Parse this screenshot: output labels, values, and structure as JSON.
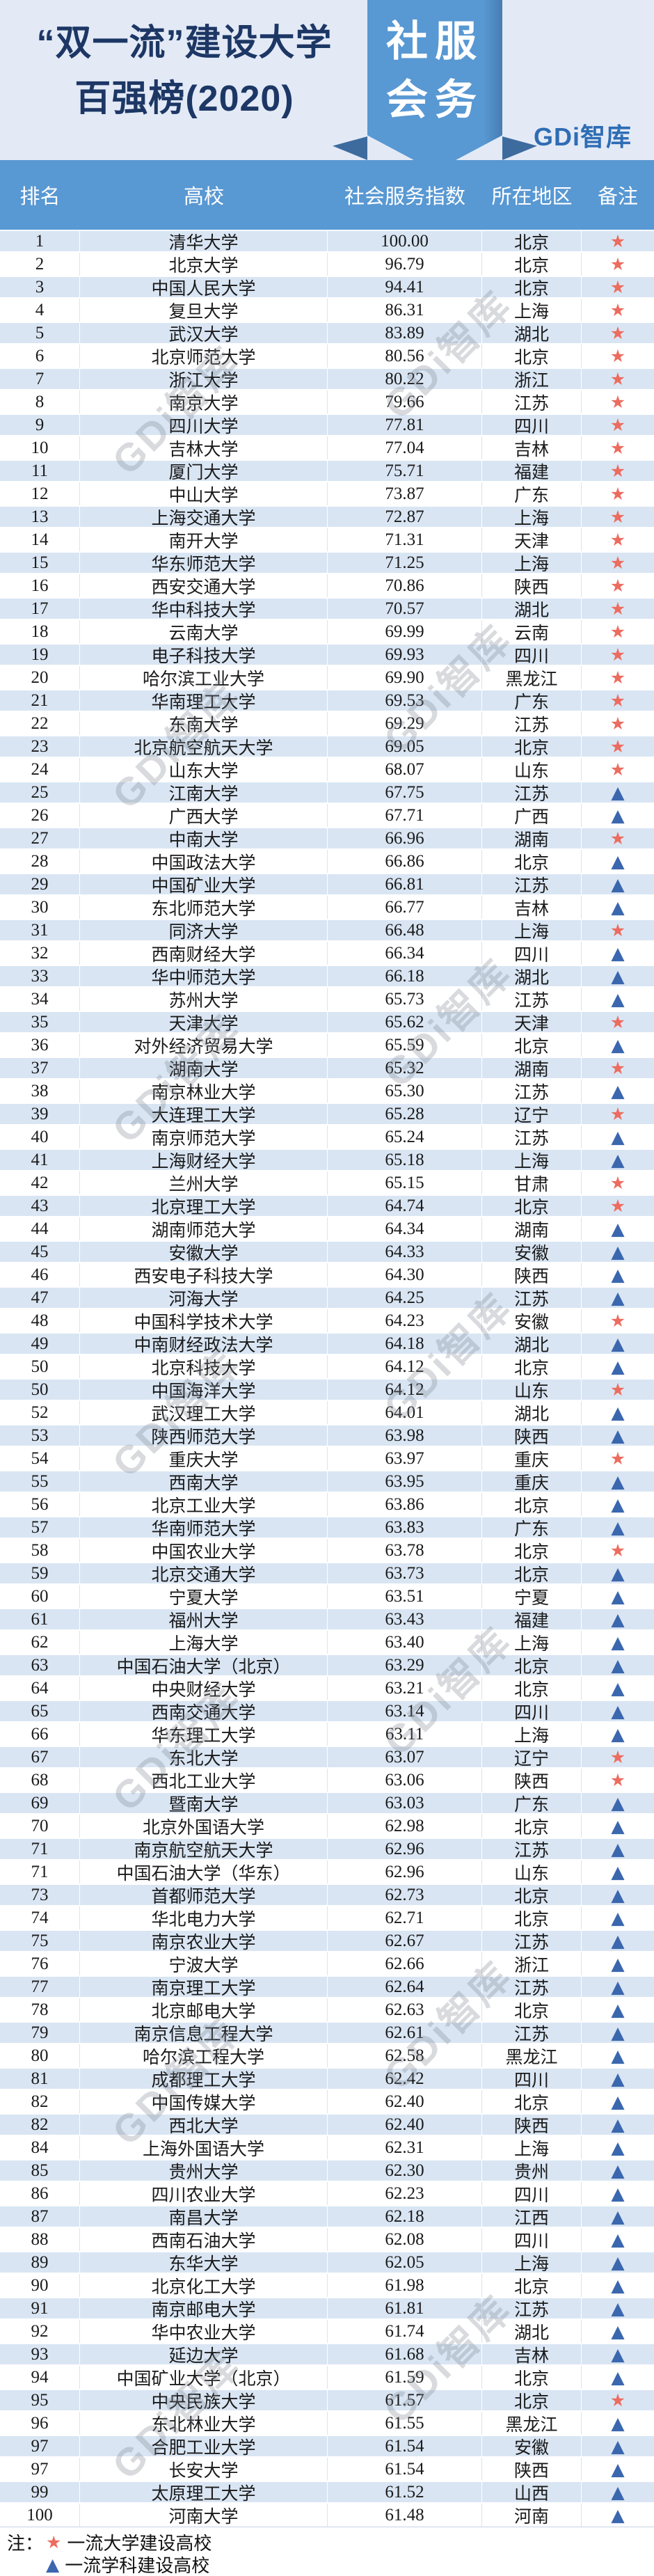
{
  "header": {
    "title_line1": "“双一流”建设大学",
    "title_line2": "百强榜(2020)",
    "badge_line1": "社服",
    "badge_line2": "会务",
    "logo": "GDi智库"
  },
  "colors": {
    "banner_background": "#e3eaf6",
    "header_blue": "#5898d3",
    "row_alt_blue": "#d9e5f3",
    "title_navy": "#1d3765",
    "star_red": "#ec6c5f",
    "triangle_blue": "#3a67ae",
    "logo_blue": "#2e6db4"
  },
  "watermark": {
    "text": "GDi智库"
  },
  "legend": {
    "prefix": "注：",
    "star_symbol": "★",
    "star_label": "一流大学建设高校",
    "triangle_symbol": "▲",
    "triangle_label": "一流学科建设高校"
  },
  "chart_data": {
    "type": "table",
    "title": "“双一流”建设大学百强榜(2020)",
    "subtitle_badge": "社服会务",
    "columns": [
      "排名",
      "高校",
      "社会服务指数",
      "所在地区",
      "备注"
    ],
    "note_symbols": {
      "star": "★",
      "triangle": "▲"
    },
    "rows": [
      [
        "1",
        "清华大学",
        "100.00",
        "北京",
        "star"
      ],
      [
        "2",
        "北京大学",
        "96.79",
        "北京",
        "star"
      ],
      [
        "3",
        "中国人民大学",
        "94.41",
        "北京",
        "star"
      ],
      [
        "4",
        "复旦大学",
        "86.31",
        "上海",
        "star"
      ],
      [
        "5",
        "武汉大学",
        "83.89",
        "湖北",
        "star"
      ],
      [
        "6",
        "北京师范大学",
        "80.56",
        "北京",
        "star"
      ],
      [
        "7",
        "浙江大学",
        "80.22",
        "浙江",
        "star"
      ],
      [
        "8",
        "南京大学",
        "79.66",
        "江苏",
        "star"
      ],
      [
        "9",
        "四川大学",
        "77.81",
        "四川",
        "star"
      ],
      [
        "10",
        "吉林大学",
        "77.04",
        "吉林",
        "star"
      ],
      [
        "11",
        "厦门大学",
        "75.71",
        "福建",
        "star"
      ],
      [
        "12",
        "中山大学",
        "73.87",
        "广东",
        "star"
      ],
      [
        "13",
        "上海交通大学",
        "72.87",
        "上海",
        "star"
      ],
      [
        "14",
        "南开大学",
        "71.31",
        "天津",
        "star"
      ],
      [
        "15",
        "华东师范大学",
        "71.25",
        "上海",
        "star"
      ],
      [
        "16",
        "西安交通大学",
        "70.86",
        "陕西",
        "star"
      ],
      [
        "17",
        "华中科技大学",
        "70.57",
        "湖北",
        "star"
      ],
      [
        "18",
        "云南大学",
        "69.99",
        "云南",
        "star"
      ],
      [
        "19",
        "电子科技大学",
        "69.93",
        "四川",
        "star"
      ],
      [
        "20",
        "哈尔滨工业大学",
        "69.90",
        "黑龙江",
        "star"
      ],
      [
        "21",
        "华南理工大学",
        "69.53",
        "广东",
        "star"
      ],
      [
        "22",
        "东南大学",
        "69.29",
        "江苏",
        "star"
      ],
      [
        "23",
        "北京航空航天大学",
        "69.05",
        "北京",
        "star"
      ],
      [
        "24",
        "山东大学",
        "68.07",
        "山东",
        "star"
      ],
      [
        "25",
        "江南大学",
        "67.75",
        "江苏",
        "triangle"
      ],
      [
        "26",
        "广西大学",
        "67.71",
        "广西",
        "triangle"
      ],
      [
        "27",
        "中南大学",
        "66.96",
        "湖南",
        "star"
      ],
      [
        "28",
        "中国政法大学",
        "66.86",
        "北京",
        "triangle"
      ],
      [
        "29",
        "中国矿业大学",
        "66.81",
        "江苏",
        "triangle"
      ],
      [
        "30",
        "东北师范大学",
        "66.77",
        "吉林",
        "triangle"
      ],
      [
        "31",
        "同济大学",
        "66.48",
        "上海",
        "star"
      ],
      [
        "32",
        "西南财经大学",
        "66.34",
        "四川",
        "triangle"
      ],
      [
        "33",
        "华中师范大学",
        "66.18",
        "湖北",
        "triangle"
      ],
      [
        "34",
        "苏州大学",
        "65.73",
        "江苏",
        "triangle"
      ],
      [
        "35",
        "天津大学",
        "65.62",
        "天津",
        "star"
      ],
      [
        "36",
        "对外经济贸易大学",
        "65.59",
        "北京",
        "triangle"
      ],
      [
        "37",
        "湖南大学",
        "65.32",
        "湖南",
        "star"
      ],
      [
        "38",
        "南京林业大学",
        "65.30",
        "江苏",
        "triangle"
      ],
      [
        "39",
        "大连理工大学",
        "65.28",
        "辽宁",
        "star"
      ],
      [
        "40",
        "南京师范大学",
        "65.24",
        "江苏",
        "triangle"
      ],
      [
        "41",
        "上海财经大学",
        "65.18",
        "上海",
        "triangle"
      ],
      [
        "42",
        "兰州大学",
        "65.15",
        "甘肃",
        "star"
      ],
      [
        "43",
        "北京理工大学",
        "64.74",
        "北京",
        "star"
      ],
      [
        "44",
        "湖南师范大学",
        "64.34",
        "湖南",
        "triangle"
      ],
      [
        "45",
        "安徽大学",
        "64.33",
        "安徽",
        "triangle"
      ],
      [
        "46",
        "西安电子科技大学",
        "64.30",
        "陕西",
        "triangle"
      ],
      [
        "47",
        "河海大学",
        "64.25",
        "江苏",
        "triangle"
      ],
      [
        "48",
        "中国科学技术大学",
        "64.23",
        "安徽",
        "star"
      ],
      [
        "49",
        "中南财经政法大学",
        "64.18",
        "湖北",
        "triangle"
      ],
      [
        "50",
        "北京科技大学",
        "64.12",
        "北京",
        "triangle"
      ],
      [
        "50",
        "中国海洋大学",
        "64.12",
        "山东",
        "star"
      ],
      [
        "52",
        "武汉理工大学",
        "64.01",
        "湖北",
        "triangle"
      ],
      [
        "53",
        "陕西师范大学",
        "63.98",
        "陕西",
        "triangle"
      ],
      [
        "54",
        "重庆大学",
        "63.97",
        "重庆",
        "star"
      ],
      [
        "55",
        "西南大学",
        "63.95",
        "重庆",
        "triangle"
      ],
      [
        "56",
        "北京工业大学",
        "63.86",
        "北京",
        "triangle"
      ],
      [
        "57",
        "华南师范大学",
        "63.83",
        "广东",
        "triangle"
      ],
      [
        "58",
        "中国农业大学",
        "63.78",
        "北京",
        "star"
      ],
      [
        "59",
        "北京交通大学",
        "63.73",
        "北京",
        "triangle"
      ],
      [
        "60",
        "宁夏大学",
        "63.51",
        "宁夏",
        "triangle"
      ],
      [
        "61",
        "福州大学",
        "63.43",
        "福建",
        "triangle"
      ],
      [
        "62",
        "上海大学",
        "63.40",
        "上海",
        "triangle"
      ],
      [
        "63",
        "中国石油大学（北京）",
        "63.29",
        "北京",
        "triangle"
      ],
      [
        "64",
        "中央财经大学",
        "63.21",
        "北京",
        "triangle"
      ],
      [
        "65",
        "西南交通大学",
        "63.14",
        "四川",
        "triangle"
      ],
      [
        "66",
        "华东理工大学",
        "63.11",
        "上海",
        "triangle"
      ],
      [
        "67",
        "东北大学",
        "63.07",
        "辽宁",
        "star"
      ],
      [
        "68",
        "西北工业大学",
        "63.06",
        "陕西",
        "star"
      ],
      [
        "69",
        "暨南大学",
        "63.03",
        "广东",
        "triangle"
      ],
      [
        "70",
        "北京外国语大学",
        "62.98",
        "北京",
        "triangle"
      ],
      [
        "71",
        "南京航空航天大学",
        "62.96",
        "江苏",
        "triangle"
      ],
      [
        "71",
        "中国石油大学（华东）",
        "62.96",
        "山东",
        "triangle"
      ],
      [
        "73",
        "首都师范大学",
        "62.73",
        "北京",
        "triangle"
      ],
      [
        "74",
        "华北电力大学",
        "62.71",
        "北京",
        "triangle"
      ],
      [
        "75",
        "南京农业大学",
        "62.67",
        "江苏",
        "triangle"
      ],
      [
        "76",
        "宁波大学",
        "62.66",
        "浙江",
        "triangle"
      ],
      [
        "77",
        "南京理工大学",
        "62.64",
        "江苏",
        "triangle"
      ],
      [
        "78",
        "北京邮电大学",
        "62.63",
        "北京",
        "triangle"
      ],
      [
        "79",
        "南京信息工程大学",
        "62.61",
        "江苏",
        "triangle"
      ],
      [
        "80",
        "哈尔滨工程大学",
        "62.58",
        "黑龙江",
        "triangle"
      ],
      [
        "81",
        "成都理工大学",
        "62.42",
        "四川",
        "triangle"
      ],
      [
        "82",
        "中国传媒大学",
        "62.40",
        "北京",
        "triangle"
      ],
      [
        "82",
        "西北大学",
        "62.40",
        "陕西",
        "triangle"
      ],
      [
        "84",
        "上海外国语大学",
        "62.31",
        "上海",
        "triangle"
      ],
      [
        "85",
        "贵州大学",
        "62.30",
        "贵州",
        "triangle"
      ],
      [
        "86",
        "四川农业大学",
        "62.23",
        "四川",
        "triangle"
      ],
      [
        "87",
        "南昌大学",
        "62.18",
        "江西",
        "triangle"
      ],
      [
        "88",
        "西南石油大学",
        "62.08",
        "四川",
        "triangle"
      ],
      [
        "89",
        "东华大学",
        "62.05",
        "上海",
        "triangle"
      ],
      [
        "90",
        "北京化工大学",
        "61.98",
        "北京",
        "triangle"
      ],
      [
        "91",
        "南京邮电大学",
        "61.81",
        "江苏",
        "triangle"
      ],
      [
        "92",
        "华中农业大学",
        "61.74",
        "湖北",
        "triangle"
      ],
      [
        "93",
        "延边大学",
        "61.68",
        "吉林",
        "triangle"
      ],
      [
        "94",
        "中国矿业大学（北京）",
        "61.59",
        "北京",
        "triangle"
      ],
      [
        "95",
        "中央民族大学",
        "61.57",
        "北京",
        "star"
      ],
      [
        "96",
        "东北林业大学",
        "61.55",
        "黑龙江",
        "triangle"
      ],
      [
        "97",
        "合肥工业大学",
        "61.54",
        "安徽",
        "triangle"
      ],
      [
        "97",
        "长安大学",
        "61.54",
        "陕西",
        "triangle"
      ],
      [
        "99",
        "太原理工大学",
        "61.52",
        "山西",
        "triangle"
      ],
      [
        "100",
        "河南大学",
        "61.48",
        "河南",
        "triangle"
      ]
    ]
  }
}
